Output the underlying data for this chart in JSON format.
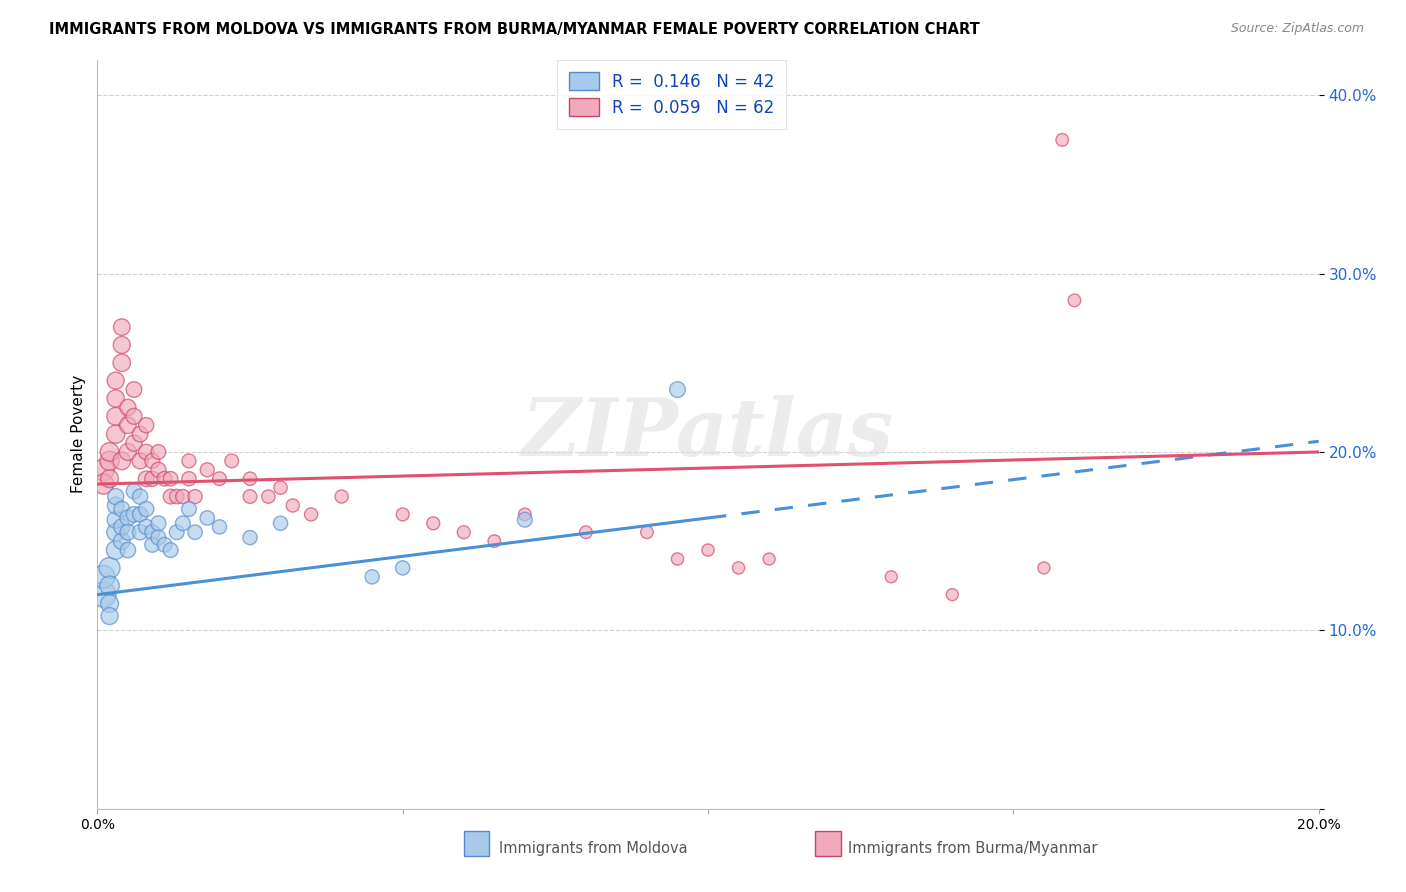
{
  "title": "IMMIGRANTS FROM MOLDOVA VS IMMIGRANTS FROM BURMA/MYANMAR FEMALE POVERTY CORRELATION CHART",
  "source": "Source: ZipAtlas.com",
  "xlabel_moldova": "Immigrants from Moldova",
  "xlabel_burma": "Immigrants from Burma/Myanmar",
  "ylabel": "Female Poverty",
  "r_moldova": 0.146,
  "n_moldova": 42,
  "r_burma": 0.059,
  "n_burma": 62,
  "xlim": [
    0.0,
    0.2
  ],
  "ylim": [
    0.0,
    0.42
  ],
  "color_moldova": "#A8CAEA",
  "color_burma": "#F0AABB",
  "color_moldova_line": "#4A90D9",
  "color_burma_line": "#E05070",
  "color_moldova_edge": "#5588CC",
  "color_burma_edge": "#CC4466",
  "watermark": "ZIPatlas",
  "legend_r1": "R =  0.146   N = 42",
  "legend_r2": "R =  0.059   N = 62",
  "moldova_x": [
    0.001,
    0.001,
    0.002,
    0.002,
    0.002,
    0.002,
    0.003,
    0.003,
    0.003,
    0.003,
    0.003,
    0.004,
    0.004,
    0.004,
    0.005,
    0.005,
    0.005,
    0.006,
    0.006,
    0.007,
    0.007,
    0.007,
    0.008,
    0.008,
    0.009,
    0.009,
    0.01,
    0.01,
    0.011,
    0.012,
    0.013,
    0.014,
    0.015,
    0.016,
    0.018,
    0.02,
    0.025,
    0.03,
    0.045,
    0.05,
    0.07,
    0.095
  ],
  "moldova_y": [
    0.12,
    0.13,
    0.135,
    0.125,
    0.115,
    0.108,
    0.145,
    0.155,
    0.162,
    0.17,
    0.175,
    0.15,
    0.158,
    0.168,
    0.163,
    0.155,
    0.145,
    0.165,
    0.178,
    0.155,
    0.165,
    0.175,
    0.158,
    0.168,
    0.155,
    0.148,
    0.16,
    0.152,
    0.148,
    0.145,
    0.155,
    0.16,
    0.168,
    0.155,
    0.163,
    0.158,
    0.152,
    0.16,
    0.13,
    0.135,
    0.162,
    0.235
  ],
  "moldova_size": [
    220,
    180,
    150,
    130,
    110,
    100,
    120,
    110,
    100,
    95,
    90,
    95,
    90,
    85,
    88,
    85,
    82,
    85,
    82,
    82,
    80,
    80,
    80,
    80,
    80,
    78,
    78,
    78,
    75,
    75,
    75,
    75,
    75,
    72,
    72,
    70,
    70,
    70,
    70,
    70,
    75,
    85
  ],
  "burma_x": [
    0.001,
    0.001,
    0.002,
    0.002,
    0.002,
    0.003,
    0.003,
    0.003,
    0.003,
    0.004,
    0.004,
    0.004,
    0.004,
    0.005,
    0.005,
    0.005,
    0.006,
    0.006,
    0.006,
    0.007,
    0.007,
    0.008,
    0.008,
    0.008,
    0.009,
    0.009,
    0.01,
    0.01,
    0.011,
    0.012,
    0.012,
    0.013,
    0.014,
    0.015,
    0.015,
    0.016,
    0.018,
    0.02,
    0.022,
    0.025,
    0.025,
    0.028,
    0.03,
    0.032,
    0.035,
    0.04,
    0.05,
    0.055,
    0.06,
    0.065,
    0.07,
    0.08,
    0.09,
    0.095,
    0.1,
    0.105,
    0.11,
    0.13,
    0.14,
    0.155,
    0.158,
    0.16
  ],
  "burma_y": [
    0.19,
    0.182,
    0.195,
    0.2,
    0.185,
    0.21,
    0.22,
    0.23,
    0.24,
    0.195,
    0.25,
    0.26,
    0.27,
    0.2,
    0.215,
    0.225,
    0.205,
    0.22,
    0.235,
    0.195,
    0.21,
    0.185,
    0.2,
    0.215,
    0.185,
    0.195,
    0.19,
    0.2,
    0.185,
    0.175,
    0.185,
    0.175,
    0.175,
    0.185,
    0.195,
    0.175,
    0.19,
    0.185,
    0.195,
    0.175,
    0.185,
    0.175,
    0.18,
    0.17,
    0.165,
    0.175,
    0.165,
    0.16,
    0.155,
    0.15,
    0.165,
    0.155,
    0.155,
    0.14,
    0.145,
    0.135,
    0.14,
    0.13,
    0.12,
    0.135,
    0.375,
    0.285
  ],
  "burma_size": [
    160,
    140,
    130,
    120,
    110,
    115,
    110,
    105,
    100,
    108,
    105,
    100,
    95,
    100,
    95,
    90,
    92,
    88,
    85,
    88,
    85,
    85,
    82,
    80,
    80,
    78,
    78,
    75,
    75,
    75,
    72,
    72,
    70,
    70,
    68,
    68,
    68,
    65,
    65,
    65,
    62,
    62,
    62,
    60,
    60,
    60,
    58,
    58,
    58,
    55,
    55,
    55,
    55,
    52,
    52,
    52,
    50,
    50,
    50,
    50,
    55,
    55
  ],
  "trend_moldova_x0": 0.0,
  "trend_moldova_y0": 0.12,
  "trend_moldova_x1": 0.1,
  "trend_moldova_y1": 0.163,
  "trend_moldova_xdash0": 0.1,
  "trend_moldova_xdash1": 0.2,
  "trend_burma_x0": 0.0,
  "trend_burma_y0": 0.182,
  "trend_burma_x1": 0.2,
  "trend_burma_y1": 0.2
}
